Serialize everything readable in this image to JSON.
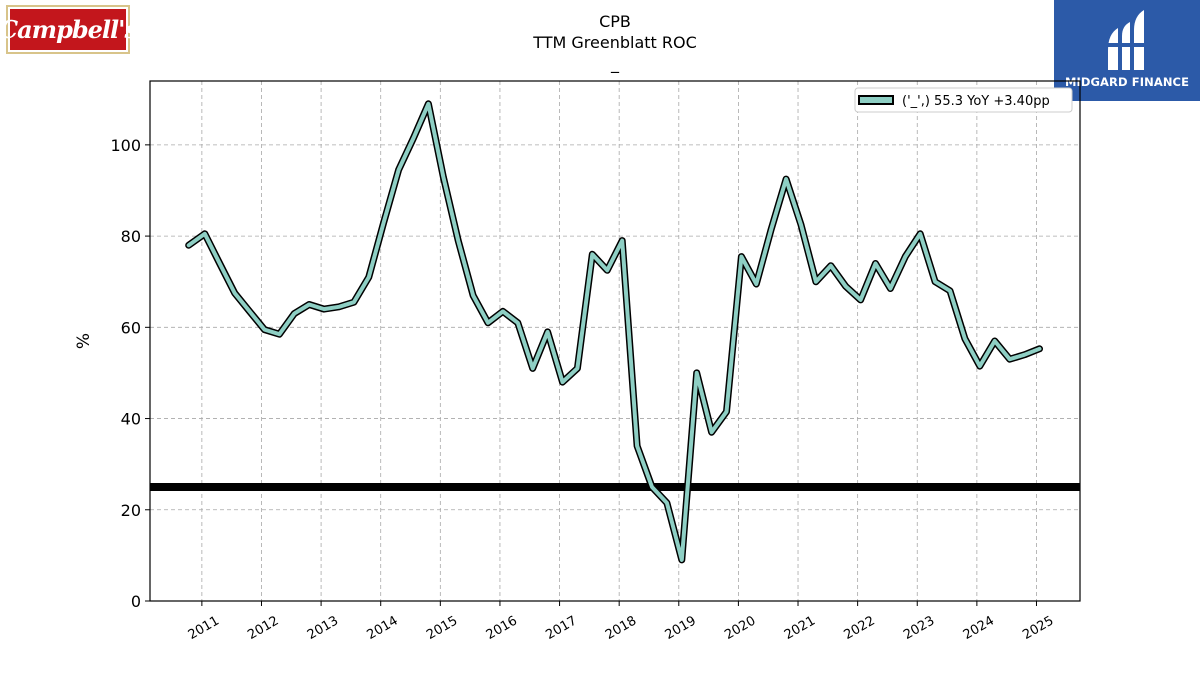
{
  "logos": {
    "left_text": "Campbell's",
    "right_text": "MIDGARD FINANCE"
  },
  "colors": {
    "series": "#8ecfc4",
    "series_outline": "#000000",
    "threshold": "#000000",
    "grid": "#a8a8a8",
    "logo_left_bg": "#c3161c",
    "logo_right_bg": "#2c5aa8"
  },
  "chart_data": {
    "type": "line",
    "title": "CPB",
    "subtitle": "TTM Greenblatt ROC",
    "subtitle2": "_",
    "xlabel": "",
    "ylabel": "%",
    "xlim": [
      2010.13,
      2025.73
    ],
    "ylim": [
      0,
      114
    ],
    "xticks": [
      2011,
      2012,
      2013,
      2014,
      2015,
      2016,
      2017,
      2018,
      2019,
      2020,
      2021,
      2022,
      2023,
      2024,
      2025
    ],
    "xtick_labels": [
      "2011",
      "2012",
      "2013",
      "2014",
      "2015",
      "2016",
      "2017",
      "2018",
      "2019",
      "2020",
      "2021",
      "2022",
      "2023",
      "2024",
      "2025"
    ],
    "yticks": [
      0,
      20,
      40,
      60,
      80,
      100
    ],
    "ytick_labels": [
      "0",
      "20",
      "40",
      "60",
      "80",
      "100"
    ],
    "grid": true,
    "legend_position": "top-right",
    "threshold": 25,
    "series": [
      {
        "name": "('_',) 55.3 YoY +3.40pp",
        "x": [
          2010.78,
          2011.05,
          2011.3,
          2011.55,
          2011.8,
          2012.05,
          2012.3,
          2012.55,
          2012.8,
          2013.05,
          2013.3,
          2013.55,
          2013.8,
          2014.05,
          2014.3,
          2014.55,
          2014.8,
          2015.05,
          2015.3,
          2015.55,
          2015.8,
          2016.05,
          2016.3,
          2016.55,
          2016.8,
          2017.05,
          2017.3,
          2017.55,
          2017.8,
          2018.05,
          2018.3,
          2018.55,
          2018.8,
          2019.05,
          2019.3,
          2019.55,
          2019.8,
          2020.05,
          2020.3,
          2020.55,
          2020.8,
          2021.05,
          2021.3,
          2021.55,
          2021.8,
          2022.05,
          2022.3,
          2022.55,
          2022.8,
          2023.05,
          2023.3,
          2023.55,
          2023.8,
          2024.05,
          2024.3,
          2024.55,
          2024.8,
          2025.05
        ],
        "values": [
          78,
          80.5,
          74,
          67.5,
          63.5,
          59.5,
          58.5,
          63,
          65,
          64,
          64.5,
          65.5,
          71,
          83,
          94.5,
          101.5,
          109,
          93,
          79,
          67,
          61,
          63.5,
          61,
          51,
          59,
          48,
          51,
          76,
          72.5,
          79,
          34,
          25,
          21.5,
          9,
          50,
          37,
          41.5,
          75.5,
          69.5,
          81.5,
          92.5,
          82.5,
          70,
          73.5,
          69,
          66,
          74,
          68.5,
          75.5,
          80.5,
          70,
          68,
          57.5,
          51.5,
          57,
          53,
          54,
          55.3
        ]
      }
    ]
  }
}
